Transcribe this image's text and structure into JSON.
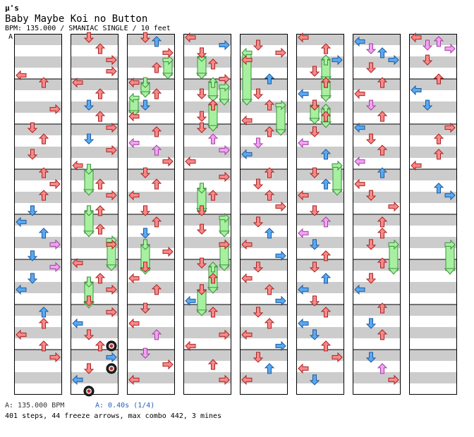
{
  "header": {
    "artist": "μ's",
    "title": "Baby Maybe Koi no Button",
    "info": "BPM: 135.000 / SMANIAC SINGLE / 10 feet",
    "marker": "A"
  },
  "footer": {
    "bpm": "A: 135.000 BPM",
    "speed": "A: 0.40s (1/4)",
    "stats": "401 steps, 44 freeze arrows, max combo 442, 3 mines"
  },
  "colors": {
    "quarter": "#f58a8a",
    "eighth": "#5aa9f2",
    "sixteenth": "#f2a3f2",
    "freeze": "#a6f0a0",
    "mine": "#444444",
    "stripe": "#cccccc"
  },
  "icons": {
    "L": "arrow-left-icon",
    "D": "arrow-down-icon",
    "U": "arrow-up-icon",
    "R": "arrow-right-icon",
    "mine": "mine-icon"
  },
  "chart_data": {
    "type": "step-chart",
    "lanes": [
      "left",
      "down",
      "up",
      "right"
    ],
    "columns": [
      {
        "notes": [
          [
            0.92,
            0,
            "q"
          ],
          [
            1.08,
            2,
            "q"
          ],
          [
            1.67,
            3,
            "q"
          ],
          [
            2.08,
            1,
            "q"
          ],
          [
            2.33,
            2,
            "q"
          ],
          [
            2.67,
            1,
            "q"
          ],
          [
            3.08,
            2,
            "q"
          ],
          [
            3.33,
            3,
            "q"
          ],
          [
            3.58,
            2,
            "q"
          ],
          [
            3.92,
            1,
            "e"
          ],
          [
            4.17,
            0,
            "e"
          ],
          [
            4.42,
            2,
            "e"
          ],
          [
            4.67,
            3,
            "s"
          ],
          [
            4.92,
            1,
            "e"
          ],
          [
            5.17,
            3,
            "s"
          ],
          [
            5.42,
            1,
            "e"
          ],
          [
            5.67,
            0,
            "e"
          ],
          [
            6.17,
            2,
            "e"
          ],
          [
            6.42,
            2,
            "q"
          ],
          [
            6.67,
            0,
            "q"
          ],
          [
            6.92,
            2,
            "q"
          ],
          [
            7.17,
            3,
            "q"
          ]
        ]
      },
      {
        "notes": [
          [
            0.08,
            1,
            "q"
          ],
          [
            0.33,
            2,
            "q"
          ],
          [
            0.58,
            3,
            "q"
          ],
          [
            0.83,
            3,
            "q"
          ],
          [
            1.08,
            0,
            "q"
          ],
          [
            1.33,
            2,
            "q"
          ],
          [
            1.58,
            1,
            "e"
          ],
          [
            1.83,
            2,
            "q"
          ],
          [
            2.08,
            3,
            "q"
          ],
          [
            2.33,
            1,
            "e"
          ],
          [
            2.58,
            3,
            "q"
          ],
          [
            2.92,
            0,
            "q"
          ],
          [
            3.33,
            2,
            "q"
          ],
          [
            3.58,
            3,
            "q"
          ],
          [
            3.92,
            2,
            "q"
          ],
          [
            4.33,
            2,
            "q"
          ],
          [
            4.67,
            3,
            "q"
          ],
          [
            5.08,
            0,
            "q"
          ],
          [
            5.42,
            2,
            "q"
          ],
          [
            5.67,
            3,
            "q"
          ],
          [
            5.92,
            1,
            "q"
          ],
          [
            6.17,
            3,
            "q"
          ],
          [
            6.42,
            0,
            "e"
          ],
          [
            6.67,
            1,
            "q"
          ],
          [
            6.92,
            2,
            "q"
          ],
          [
            7.17,
            3,
            "e"
          ],
          [
            7.42,
            1,
            "q"
          ],
          [
            7.67,
            0,
            "e"
          ]
        ],
        "freezes": [
          [
            3.0,
            3.5,
            1
          ],
          [
            3.92,
            4.42,
            1
          ],
          [
            4.58,
            5.17,
            3
          ],
          [
            5.5,
            6.0,
            1
          ]
        ],
        "mines": [
          [
            6.92,
            3
          ],
          [
            7.42,
            3
          ],
          [
            7.92,
            1
          ]
        ]
      },
      {
        "notes": [
          [
            0.08,
            1,
            "q"
          ],
          [
            0.17,
            2,
            "e"
          ],
          [
            0.42,
            3,
            "q"
          ],
          [
            0.75,
            2,
            "q"
          ],
          [
            1.08,
            0,
            "q"
          ],
          [
            1.33,
            2,
            "q"
          ],
          [
            1.58,
            1,
            "e"
          ],
          [
            1.83,
            0,
            "q"
          ],
          [
            2.17,
            2,
            "q"
          ],
          [
            2.42,
            0,
            "s"
          ],
          [
            2.58,
            2,
            "s"
          ],
          [
            2.83,
            3,
            "q"
          ],
          [
            3.08,
            1,
            "q"
          ],
          [
            3.33,
            2,
            "q"
          ],
          [
            3.58,
            0,
            "q"
          ],
          [
            3.92,
            1,
            "q"
          ],
          [
            4.17,
            2,
            "q"
          ],
          [
            4.42,
            1,
            "e"
          ],
          [
            4.83,
            3,
            "q"
          ],
          [
            5.17,
            1,
            "q"
          ],
          [
            5.42,
            0,
            "q"
          ],
          [
            5.67,
            2,
            "q"
          ],
          [
            6.08,
            1,
            "q"
          ],
          [
            6.42,
            0,
            "q"
          ],
          [
            6.67,
            2,
            "s"
          ],
          [
            7.08,
            1,
            "s"
          ],
          [
            7.33,
            3,
            "q"
          ],
          [
            7.67,
            0,
            "q"
          ]
        ],
        "freezes": [
          [
            0.58,
            0.92,
            3
          ],
          [
            1.08,
            1.33,
            1
          ],
          [
            1.42,
            1.75,
            0
          ],
          [
            4.67,
            5.25,
            1
          ]
        ]
      },
      {
        "notes": [
          [
            0.08,
            0,
            "q"
          ],
          [
            0.25,
            3,
            "e"
          ],
          [
            0.42,
            1,
            "q"
          ],
          [
            0.67,
            2,
            "q"
          ],
          [
            1.0,
            3,
            "q"
          ],
          [
            1.33,
            1,
            "q"
          ],
          [
            1.58,
            2,
            "q"
          ],
          [
            1.83,
            1,
            "q"
          ],
          [
            2.08,
            1,
            "q"
          ],
          [
            2.33,
            2,
            "s"
          ],
          [
            2.58,
            3,
            "s"
          ],
          [
            2.83,
            0,
            "q"
          ],
          [
            3.17,
            3,
            "q"
          ],
          [
            3.58,
            2,
            "q"
          ],
          [
            3.92,
            1,
            "q"
          ],
          [
            4.33,
            1,
            "q"
          ],
          [
            4.67,
            3,
            "q"
          ],
          [
            5.08,
            1,
            "q"
          ],
          [
            5.42,
            2,
            "q"
          ],
          [
            5.67,
            1,
            "q"
          ],
          [
            5.92,
            0,
            "e"
          ],
          [
            6.17,
            2,
            "q"
          ],
          [
            6.67,
            3,
            "q"
          ],
          [
            6.92,
            0,
            "q"
          ],
          [
            7.33,
            2,
            "q"
          ],
          [
            7.67,
            3,
            "q"
          ]
        ],
        "freezes": [
          [
            0.5,
            0.92,
            1
          ],
          [
            1.08,
            1.42,
            2
          ],
          [
            1.17,
            1.5,
            3
          ],
          [
            1.58,
            2.08,
            2
          ],
          [
            3.42,
            3.92,
            1
          ],
          [
            4.08,
            4.42,
            3
          ],
          [
            4.67,
            5.17,
            3
          ],
          [
            5.17,
            5.67,
            2
          ],
          [
            5.67,
            6.17,
            1
          ]
        ]
      },
      {
        "notes": [
          [
            0.25,
            1,
            "q"
          ],
          [
            0.42,
            3,
            "q"
          ],
          [
            0.58,
            0,
            "q"
          ],
          [
            1.0,
            2,
            "e"
          ],
          [
            1.33,
            1,
            "q"
          ],
          [
            1.58,
            2,
            "q"
          ],
          [
            1.92,
            0,
            "q"
          ],
          [
            2.17,
            2,
            "q"
          ],
          [
            2.42,
            1,
            "s"
          ],
          [
            2.67,
            0,
            "e"
          ],
          [
            3.08,
            2,
            "q"
          ],
          [
            3.33,
            1,
            "q"
          ],
          [
            3.58,
            2,
            "q"
          ],
          [
            3.83,
            3,
            "q"
          ],
          [
            4.17,
            1,
            "q"
          ],
          [
            4.42,
            2,
            "e"
          ],
          [
            4.67,
            0,
            "q"
          ],
          [
            4.92,
            3,
            "e"
          ],
          [
            5.17,
            1,
            "q"
          ],
          [
            5.42,
            0,
            "q"
          ],
          [
            5.67,
            2,
            "q"
          ],
          [
            5.92,
            3,
            "e"
          ],
          [
            6.17,
            1,
            "q"
          ],
          [
            6.42,
            2,
            "q"
          ],
          [
            6.67,
            0,
            "q"
          ],
          [
            6.92,
            3,
            "e"
          ],
          [
            7.17,
            1,
            "q"
          ],
          [
            7.42,
            2,
            "e"
          ],
          [
            7.67,
            0,
            "q"
          ]
        ],
        "freezes": [
          [
            0.42,
            1.5,
            0
          ],
          [
            1.58,
            2.17,
            3
          ]
        ]
      },
      {
        "notes": [
          [
            0.08,
            0,
            "q"
          ],
          [
            0.33,
            2,
            "q"
          ],
          [
            0.58,
            3,
            "e"
          ],
          [
            0.83,
            1,
            "q"
          ],
          [
            1.08,
            2,
            "q"
          ],
          [
            1.33,
            0,
            "e"
          ],
          [
            1.58,
            1,
            "q"
          ],
          [
            1.83,
            2,
            "q"
          ],
          [
            2.17,
            1,
            "q"
          ],
          [
            2.42,
            0,
            "s"
          ],
          [
            2.67,
            2,
            "e"
          ],
          [
            3.08,
            1,
            "q"
          ],
          [
            3.33,
            2,
            "e"
          ],
          [
            3.58,
            0,
            "q"
          ],
          [
            3.92,
            1,
            "q"
          ],
          [
            4.17,
            2,
            "s"
          ],
          [
            4.42,
            0,
            "s"
          ],
          [
            4.67,
            1,
            "e"
          ],
          [
            4.92,
            2,
            "q"
          ],
          [
            5.17,
            1,
            "q"
          ],
          [
            5.42,
            2,
            "e"
          ],
          [
            5.67,
            0,
            "e"
          ],
          [
            5.92,
            1,
            "q"
          ],
          [
            6.17,
            2,
            "q"
          ],
          [
            6.42,
            0,
            "e"
          ],
          [
            6.67,
            1,
            "e"
          ],
          [
            6.92,
            2,
            "q"
          ],
          [
            7.17,
            3,
            "q"
          ],
          [
            7.42,
            0,
            "q"
          ],
          [
            7.67,
            1,
            "e"
          ]
        ],
        "freezes": [
          [
            0.58,
            1.0,
            2
          ],
          [
            1.08,
            1.42,
            2
          ],
          [
            1.58,
            1.92,
            1
          ],
          [
            1.67,
            2.0,
            2
          ],
          [
            2.92,
            3.5,
            3
          ]
        ]
      },
      {
        "notes": [
          [
            0.17,
            0,
            "e"
          ],
          [
            0.33,
            1,
            "s"
          ],
          [
            0.42,
            2,
            "e"
          ],
          [
            0.58,
            3,
            "e"
          ],
          [
            0.75,
            1,
            "q"
          ],
          [
            1.08,
            2,
            "q"
          ],
          [
            1.33,
            0,
            "q"
          ],
          [
            1.58,
            1,
            "s"
          ],
          [
            1.83,
            2,
            "q"
          ],
          [
            2.08,
            0,
            "e"
          ],
          [
            2.33,
            1,
            "q"
          ],
          [
            2.58,
            2,
            "q"
          ],
          [
            2.83,
            0,
            "s"
          ],
          [
            3.08,
            2,
            "e"
          ],
          [
            3.33,
            0,
            "q"
          ],
          [
            3.58,
            1,
            "q"
          ],
          [
            3.83,
            3,
            "q"
          ],
          [
            4.17,
            2,
            "q"
          ],
          [
            4.42,
            2,
            "q"
          ],
          [
            4.67,
            1,
            "q"
          ],
          [
            5.08,
            2,
            "q"
          ],
          [
            5.42,
            1,
            "q"
          ],
          [
            5.67,
            0,
            "e"
          ],
          [
            6.08,
            2,
            "q"
          ],
          [
            6.42,
            1,
            "e"
          ],
          [
            6.67,
            2,
            "q"
          ],
          [
            7.17,
            1,
            "e"
          ],
          [
            7.42,
            2,
            "s"
          ],
          [
            7.67,
            3,
            "q"
          ]
        ],
        "freezes": [
          [
            4.67,
            5.25,
            3
          ]
        ]
      },
      {
        "notes": [
          [
            0.08,
            0,
            "q"
          ],
          [
            0.17,
            2,
            "s"
          ],
          [
            0.25,
            1,
            "s"
          ],
          [
            0.33,
            3,
            "s"
          ],
          [
            0.58,
            1,
            "q"
          ],
          [
            1.0,
            2,
            "q"
          ],
          [
            1.25,
            0,
            "e"
          ],
          [
            1.58,
            1,
            "e"
          ],
          [
            2.08,
            3,
            "q"
          ],
          [
            2.33,
            2,
            "q"
          ],
          [
            2.67,
            2,
            "q"
          ],
          [
            2.92,
            0,
            "q"
          ],
          [
            3.42,
            2,
            "e"
          ],
          [
            3.58,
            3,
            "e"
          ]
        ],
        "freezes": [
          [
            4.67,
            5.25,
            3
          ]
        ]
      }
    ]
  }
}
